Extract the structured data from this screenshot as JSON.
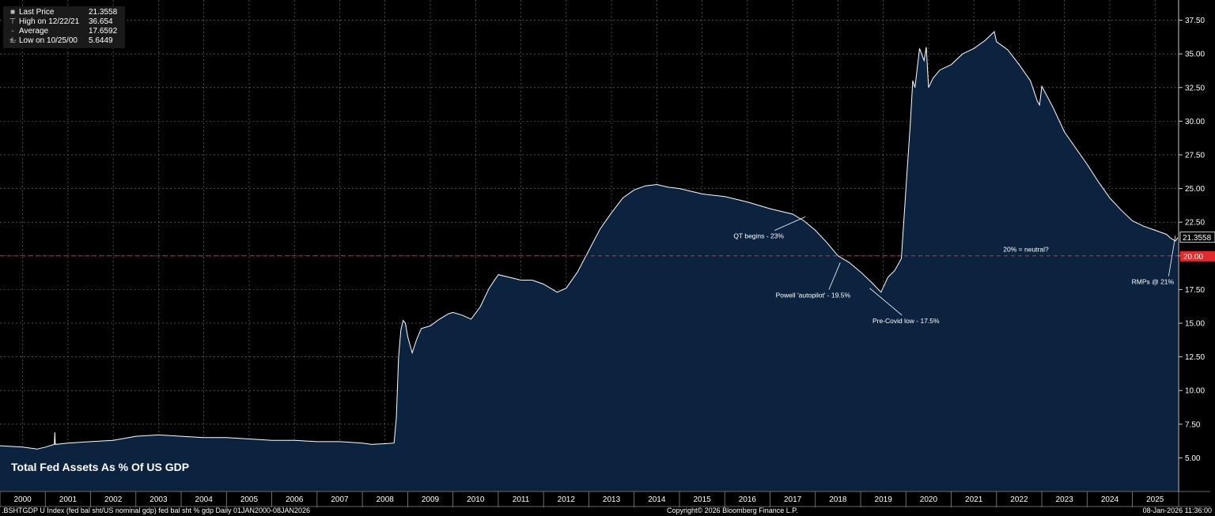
{
  "legend": {
    "items": [
      {
        "label": "Last Price",
        "value": "21.3558"
      },
      {
        "label": "High on 12/22/21",
        "value": "36.654"
      },
      {
        "label": "Average",
        "value": "17.6592"
      },
      {
        "label": "Low on 10/25/00",
        "value": "5.6449"
      }
    ]
  },
  "colors": {
    "line": "#ffffff",
    "fill": "#0c2340",
    "grid": "#7a7a7a",
    "reference": "#e32b2b",
    "background": "#000000"
  },
  "footer": {
    "left": ".BSHTGDP U Index (fed bal sht/US nominal gdp) fed bal sht % gdp Daily 01JAN2000-08JAN2026",
    "center": "Copyright© 2026 Bloomberg Finance L.P.",
    "right": "08-Jan-2026 11:36:00"
  },
  "chart_data": {
    "type": "area",
    "title": "Total Fed Assets As % Of US GDP",
    "xlabel": "",
    "ylabel": "",
    "ylim": [
      2.5,
      39.0
    ],
    "xlim": [
      2000.0,
      2026.02
    ],
    "y_ticks": [
      "5.00",
      "7.50",
      "10.00",
      "12.50",
      "15.00",
      "17.50",
      "20.00",
      "22.50",
      "25.00",
      "27.50",
      "30.00",
      "32.50",
      "35.00",
      "37.50"
    ],
    "x_ticks": [
      "2000",
      "2001",
      "2002",
      "2003",
      "2004",
      "2005",
      "2006",
      "2007",
      "2008",
      "2009",
      "2010",
      "2011",
      "2012",
      "2013",
      "2014",
      "2015",
      "2016",
      "2017",
      "2018",
      "2019",
      "2020",
      "2021",
      "2022",
      "2023",
      "2024",
      "2025"
    ],
    "grid": true,
    "last_value": {
      "label": "21.3558",
      "value": 21.3558
    },
    "reference_line": {
      "label": "20.00",
      "value": 20.0
    },
    "series": [
      {
        "x": [
          2000.0,
          2000.5,
          2000.82,
          2001.0,
          2001.2,
          2001.21,
          2001.22,
          2001.5,
          2002.0,
          2002.5,
          2003.0,
          2003.5,
          2004.0,
          2004.5,
          2005.0,
          2005.5,
          2006.0,
          2006.5,
          2007.0,
          2007.5,
          2008.0,
          2008.2,
          2008.5,
          2008.7,
          2008.75,
          2008.8,
          2008.85,
          2008.9,
          2008.95,
          2009.0,
          2009.1,
          2009.2,
          2009.3,
          2009.5,
          2009.7,
          2009.9,
          2010.0,
          2010.2,
          2010.4,
          2010.6,
          2010.8,
          2011.0,
          2011.25,
          2011.5,
          2011.75,
          2012.0,
          2012.3,
          2012.5,
          2012.75,
          2013.0,
          2013.25,
          2013.5,
          2013.75,
          2014.0,
          2014.25,
          2014.5,
          2014.75,
          2015.0,
          2015.5,
          2016.0,
          2016.5,
          2017.0,
          2017.5,
          2017.75,
          2018.0,
          2018.25,
          2018.5,
          2018.75,
          2019.0,
          2019.25,
          2019.45,
          2019.6,
          2019.75,
          2019.9,
          2020.0,
          2020.1,
          2020.15,
          2020.2,
          2020.3,
          2020.4,
          2020.45,
          2020.5,
          2020.6,
          2020.75,
          2021.0,
          2021.25,
          2021.5,
          2021.75,
          2021.95,
          2022.0,
          2022.25,
          2022.5,
          2022.75,
          2022.9,
          2022.95,
          2023.0,
          2023.25,
          2023.5,
          2023.75,
          2024.0,
          2024.25,
          2024.5,
          2024.75,
          2025.0,
          2025.25,
          2025.5,
          2025.75,
          2025.85,
          2025.95,
          2026.0
        ],
        "values": [
          5.9,
          5.8,
          5.65,
          5.8,
          6.0,
          6.9,
          6.0,
          6.1,
          6.2,
          6.3,
          6.6,
          6.7,
          6.6,
          6.5,
          6.5,
          6.4,
          6.3,
          6.3,
          6.2,
          6.2,
          6.1,
          6.0,
          6.05,
          6.1,
          8.0,
          12.5,
          14.5,
          15.2,
          15.0,
          14.0,
          12.8,
          13.8,
          14.6,
          14.8,
          15.3,
          15.7,
          15.8,
          15.6,
          15.3,
          16.2,
          17.6,
          18.6,
          18.4,
          18.2,
          18.2,
          17.9,
          17.3,
          17.6,
          18.8,
          20.4,
          22.0,
          23.2,
          24.3,
          24.9,
          25.2,
          25.3,
          25.1,
          25.0,
          24.6,
          24.4,
          24.0,
          23.5,
          23.1,
          22.6,
          21.9,
          21.0,
          20.0,
          19.5,
          18.8,
          18.0,
          17.3,
          18.4,
          18.9,
          19.8,
          25.0,
          30.0,
          33.0,
          32.5,
          35.4,
          34.5,
          35.5,
          32.5,
          33.2,
          33.8,
          34.2,
          35.0,
          35.4,
          36.0,
          36.654,
          35.9,
          35.3,
          34.2,
          33.0,
          31.5,
          31.2,
          32.6,
          31.0,
          29.2,
          28.0,
          26.8,
          25.5,
          24.3,
          23.4,
          22.6,
          22.2,
          21.9,
          21.6,
          21.3,
          21.1,
          21.3558
        ]
      }
    ],
    "annotations": [
      {
        "text": "QT begins - 23%",
        "x": 2017.78,
        "y": 22.9,
        "text_x": 2016.75,
        "text_y": 21.3
      },
      {
        "text": "Powell 'autopilot' - 19.5%",
        "x": 2018.55,
        "y": 19.5,
        "text_x": 2017.95,
        "text_y": 16.9
      },
      {
        "text": "Pre-Covid low - 17.5%",
        "x": 2019.2,
        "y": 17.6,
        "text_x": 2020.0,
        "text_y": 15.0
      },
      {
        "text": "RMPs @ 21%",
        "x": 2025.95,
        "y": 21.5,
        "text_x": 2025.45,
        "text_y": 17.9
      },
      {
        "text": "20% = neutral?",
        "x": null,
        "y": null,
        "text_x": 2022.65,
        "text_y": 20.3
      }
    ]
  }
}
